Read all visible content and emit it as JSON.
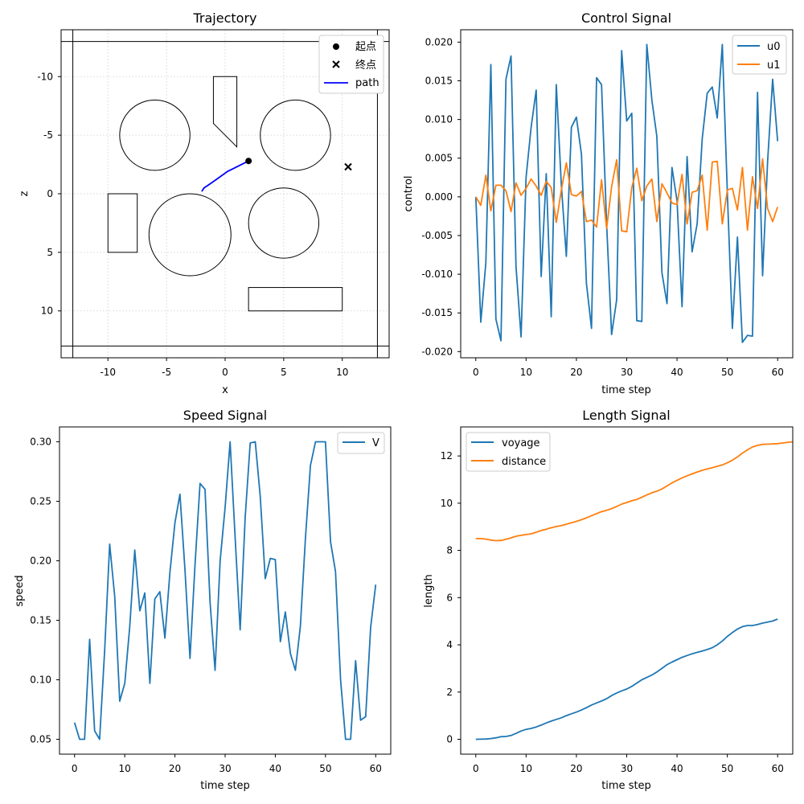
{
  "chart_data": [
    {
      "type": "scatter",
      "title": "Trajectory",
      "xlabel": "x",
      "ylabel": "z",
      "xlim": [
        -14,
        14
      ],
      "ylim": [
        14,
        -14
      ],
      "y_inverted": true,
      "grid": true,
      "xticks": [
        -10,
        -5,
        0,
        5,
        10
      ],
      "yticks": [
        -10,
        -5,
        0,
        5,
        10
      ],
      "boundary_rect": {
        "x": [
          -13,
          13
        ],
        "z": [
          -13,
          13
        ]
      },
      "circles": [
        {
          "cx": -6,
          "cz": -5,
          "r": 3
        },
        {
          "cx": 6,
          "cz": -5,
          "r": 3
        },
        {
          "cx": -3,
          "cz": 3.5,
          "r": 3.5
        },
        {
          "cx": 5,
          "cz": 2.5,
          "r": 3
        }
      ],
      "rectangles": [
        {
          "x": [
            -10,
            -7.5
          ],
          "z": [
            0,
            5
          ]
        },
        {
          "x": [
            2,
            10
          ],
          "z": [
            8,
            10
          ]
        }
      ],
      "polygons": [
        {
          "points": [
            [
              -1,
              -10
            ],
            [
              1,
              -10
            ],
            [
              1,
              -4
            ],
            [
              -1,
              -6
            ]
          ]
        }
      ],
      "start": {
        "x": 2,
        "z": -2.8
      },
      "end": {
        "x": 10.5,
        "z": -2.3
      },
      "path": [
        [
          -2,
          -0.2
        ],
        [
          -1.8,
          -0.5
        ],
        [
          -1.2,
          -0.9
        ],
        [
          -0.5,
          -1.4
        ],
        [
          0.2,
          -1.9
        ],
        [
          0.8,
          -2.2
        ],
        [
          1.4,
          -2.5
        ],
        [
          2,
          -2.8
        ]
      ],
      "legend": {
        "position": "top-right",
        "entries": [
          "起点",
          "终点",
          "path"
        ]
      },
      "colors": {
        "path": "#0000ff",
        "markers": "#000000"
      }
    },
    {
      "type": "line",
      "title": "Control Signal",
      "xlabel": "time step",
      "ylabel": "control",
      "xlim": [
        -3,
        63
      ],
      "ylim": [
        -0.0208,
        0.0216
      ],
      "xticks": [
        0,
        10,
        20,
        30,
        40,
        50,
        60
      ],
      "yticks": [
        "-0.020",
        "-0.015",
        "-0.010",
        "-0.005",
        "0.000",
        "0.005",
        "0.010",
        "0.015",
        "0.020"
      ],
      "legend": {
        "position": "top-right"
      },
      "series": [
        {
          "name": "u0",
          "color": "#1f77b4",
          "values": [
            0.0,
            -0.0162,
            -0.0085,
            0.0171,
            -0.0158,
            -0.0186,
            0.0152,
            0.0182,
            -0.009,
            -0.0181,
            0.0025,
            0.009,
            0.0138,
            -0.0103,
            0.003,
            -0.0155,
            0.0145,
            0.0015,
            -0.0077,
            0.009,
            0.0103,
            0.0055,
            -0.0112,
            -0.017,
            0.0154,
            0.0145,
            -0.0035,
            -0.0178,
            -0.0133,
            0.0189,
            0.0098,
            0.0108,
            -0.016,
            -0.0161,
            0.0197,
            0.0125,
            0.0078,
            -0.0098,
            -0.0138,
            0.0038,
            -0.0005,
            -0.0142,
            0.0052,
            -0.0071,
            -0.0035,
            0.0075,
            0.0134,
            0.0142,
            0.0102,
            0.0197,
            0.0004,
            -0.017,
            -0.0052,
            -0.0188,
            -0.0179,
            -0.018,
            0.0135,
            -0.0102,
            0.0045,
            0.0152,
            0.0072
          ]
        },
        {
          "name": "u1",
          "color": "#ff7f0e",
          "values": [
            0.0,
            -0.0011,
            0.0028,
            -0.0018,
            0.0015,
            0.0015,
            0.0008,
            -0.0019,
            0.0018,
            0.0002,
            0.0011,
            0.0023,
            0.0014,
            0.0002,
            0.002,
            0.0012,
            -0.0033,
            0.0009,
            0.0044,
            0.0003,
            0.0001,
            0.0007,
            -0.0032,
            -0.003,
            -0.0039,
            0.0022,
            -0.0041,
            0.0013,
            0.0048,
            -0.0044,
            -0.0045,
            0.0012,
            0.0037,
            -0.0005,
            0.0014,
            0.0023,
            -0.0032,
            0.0017,
            0.0005,
            -0.0008,
            -0.001,
            0.0029,
            -0.0035,
            0.0006,
            0.0008,
            0.0028,
            -0.0043,
            0.0045,
            0.0046,
            -0.0035,
            0.0009,
            0.0011,
            -0.0017,
            0.0038,
            -0.0043,
            0.0026,
            -0.0015,
            0.0049,
            -0.0015,
            -0.0032,
            -0.0013
          ]
        }
      ]
    },
    {
      "type": "line",
      "title": "Speed Signal",
      "xlabel": "time step",
      "ylabel": "speed",
      "xlim": [
        -3,
        63
      ],
      "ylim": [
        0.0375,
        0.3125
      ],
      "xticks": [
        0,
        10,
        20,
        30,
        40,
        50,
        60
      ],
      "yticks": [
        "0.05",
        "0.10",
        "0.15",
        "0.20",
        "0.25",
        "0.30"
      ],
      "legend": {
        "position": "top-right"
      },
      "series": [
        {
          "name": "V",
          "color": "#1f77b4",
          "values": [
            0.064,
            0.05,
            0.05,
            0.134,
            0.057,
            0.05,
            0.125,
            0.214,
            0.17,
            0.082,
            0.097,
            0.145,
            0.209,
            0.158,
            0.173,
            0.097,
            0.168,
            0.174,
            0.135,
            0.19,
            0.232,
            0.256,
            0.192,
            0.118,
            0.196,
            0.265,
            0.26,
            0.165,
            0.108,
            0.2,
            0.245,
            0.3,
            0.219,
            0.142,
            0.237,
            0.299,
            0.3,
            0.254,
            0.185,
            0.202,
            0.201,
            0.132,
            0.157,
            0.122,
            0.108,
            0.145,
            0.219,
            0.28,
            0.3,
            0.3,
            0.3,
            0.216,
            0.191,
            0.1,
            0.05,
            0.05,
            0.116,
            0.066,
            0.069,
            0.144,
            0.18
          ]
        }
      ]
    },
    {
      "type": "line",
      "title": "Length Signal",
      "xlabel": "time step",
      "ylabel": "length",
      "xlim": [
        -3,
        63
      ],
      "ylim": [
        -0.63,
        13.23
      ],
      "xticks": [
        0,
        10,
        20,
        30,
        40,
        50,
        60
      ],
      "yticks": [
        0,
        2,
        4,
        6,
        8,
        10,
        12
      ],
      "legend": {
        "position": "top-left"
      },
      "series": [
        {
          "name": "voyage",
          "color": "#1f77b4",
          "values": [
            0.0,
            0.005,
            0.01,
            0.03,
            0.06,
            0.11,
            0.12,
            0.16,
            0.25,
            0.35,
            0.42,
            0.46,
            0.52,
            0.6,
            0.69,
            0.77,
            0.84,
            0.91,
            1.0,
            1.08,
            1.15,
            1.24,
            1.34,
            1.45,
            1.54,
            1.62,
            1.72,
            1.85,
            1.96,
            2.05,
            2.13,
            2.24,
            2.38,
            2.52,
            2.62,
            2.72,
            2.85,
            3.0,
            3.16,
            3.27,
            3.37,
            3.47,
            3.55,
            3.62,
            3.68,
            3.74,
            3.8,
            3.88,
            4.0,
            4.16,
            4.36,
            4.52,
            4.67,
            4.77,
            4.82,
            4.82,
            4.86,
            4.92,
            4.96,
            5.01,
            5.09
          ]
        },
        {
          "name": "distance",
          "color": "#ff7f0e",
          "values": [
            8.5,
            8.5,
            8.48,
            8.44,
            8.41,
            8.42,
            8.47,
            8.53,
            8.6,
            8.64,
            8.67,
            8.7,
            8.77,
            8.84,
            8.9,
            8.96,
            9.01,
            9.05,
            9.11,
            9.17,
            9.23,
            9.3,
            9.38,
            9.47,
            9.56,
            9.64,
            9.7,
            9.77,
            9.86,
            9.96,
            10.03,
            10.1,
            10.16,
            10.25,
            10.35,
            10.44,
            10.51,
            10.6,
            10.73,
            10.86,
            10.97,
            11.07,
            11.16,
            11.24,
            11.32,
            11.39,
            11.45,
            11.5,
            11.56,
            11.62,
            11.71,
            11.82,
            11.96,
            12.12,
            12.26,
            12.38,
            12.45,
            12.49,
            12.5,
            12.51,
            12.52,
            12.55,
            12.58,
            12.6
          ]
        }
      ]
    }
  ]
}
